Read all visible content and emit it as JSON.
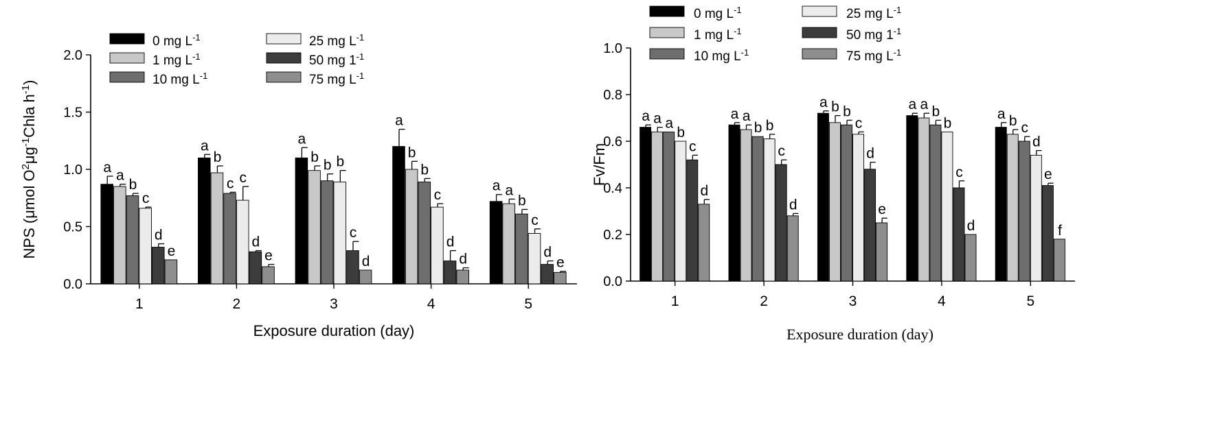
{
  "chart_data": [
    {
      "type": "bar",
      "categories": [
        "1",
        "2",
        "3",
        "4",
        "5"
      ],
      "xlabel": "Exposure duration (day)",
      "ylabel": {
        "before": "NPS (μmol O",
        "sup1": "2",
        "mid": "μg",
        "sup2": "-1",
        "after": "Chla h",
        "sup3": "-1",
        "end": ")"
      },
      "ylim": [
        0,
        2.0
      ],
      "yticks": [
        "0.0",
        "0.5",
        "1.0",
        "1.5",
        "2.0"
      ],
      "grid": false,
      "legend_position": "top-left",
      "series": [
        {
          "name": "0 mg L",
          "unit_sup": "-1",
          "color": "#000000",
          "values": [
            0.87,
            1.1,
            1.1,
            1.2,
            0.72
          ],
          "errors": [
            0.07,
            0.03,
            0.09,
            0.15,
            0.06
          ],
          "letters": [
            "a",
            "a",
            "a",
            "a",
            "a"
          ]
        },
        {
          "name": "1 mg L",
          "unit_sup": "-1",
          "color": "#c8c8c8",
          "values": [
            0.85,
            0.97,
            0.99,
            1.0,
            0.7
          ],
          "errors": [
            0.02,
            0.06,
            0.04,
            0.07,
            0.04
          ],
          "letters": [
            "a",
            "b",
            "b",
            "b",
            "a"
          ]
        },
        {
          "name": "10 mg L",
          "unit_sup": "-1",
          "color": "#6e6e6e",
          "values": [
            0.77,
            0.79,
            0.9,
            0.89,
            0.61
          ],
          "errors": [
            0.02,
            0.01,
            0.06,
            0.03,
            0.04
          ],
          "letters": [
            "b",
            "c",
            "b",
            "b",
            "b"
          ]
        },
        {
          "name": "25 mg L",
          "unit_sup": "-1",
          "color": "#ececec",
          "values": [
            0.66,
            0.73,
            0.89,
            0.67,
            0.44
          ],
          "errors": [
            0.01,
            0.12,
            0.1,
            0.03,
            0.04
          ],
          "letters": [
            "c",
            "c",
            "b",
            "c",
            "c"
          ]
        },
        {
          "name": "50 mg 1",
          "unit_sup": "-1",
          "color": "#3c3c3c",
          "values": [
            0.32,
            0.28,
            0.29,
            0.2,
            0.17
          ],
          "errors": [
            0.03,
            0.01,
            0.08,
            0.09,
            0.03
          ],
          "letters": [
            "d",
            "d",
            "c",
            "d",
            "d"
          ]
        },
        {
          "name": "75 mg L",
          "unit_sup": "-1",
          "color": "#8e8e8e",
          "values": [
            0.21,
            0.15,
            0.12,
            0.12,
            0.1
          ],
          "errors": [
            0.0,
            0.02,
            0.0,
            0.02,
            0.01
          ],
          "letters": [
            "e",
            "e",
            "d",
            "d",
            "e"
          ]
        }
      ]
    },
    {
      "type": "bar",
      "categories": [
        "1",
        "2",
        "3",
        "4",
        "5"
      ],
      "xlabel": "Exposure duration (day)",
      "ylabel": {
        "before": "Fv/Fm"
      },
      "ylim": [
        0,
        1.0
      ],
      "yticks": [
        "0.0",
        "0.2",
        "0.4",
        "0.6",
        "0.8",
        "1.0"
      ],
      "grid": false,
      "legend_position": "top-left",
      "series": [
        {
          "name": "0 mg L",
          "unit_sup": "-1",
          "color": "#000000",
          "values": [
            0.66,
            0.67,
            0.72,
            0.71,
            0.66
          ],
          "errors": [
            0.01,
            0.01,
            0.01,
            0.01,
            0.02
          ],
          "letters": [
            "a",
            "a",
            "a",
            "a",
            "a"
          ]
        },
        {
          "name": "1 mg L",
          "unit_sup": "-1",
          "color": "#c8c8c8",
          "values": [
            0.64,
            0.65,
            0.68,
            0.7,
            0.63
          ],
          "errors": [
            0.02,
            0.02,
            0.03,
            0.02,
            0.02
          ],
          "letters": [
            "a",
            "a",
            "b",
            "a",
            "b"
          ]
        },
        {
          "name": "10 mg L",
          "unit_sup": "-1",
          "color": "#6e6e6e",
          "values": [
            0.64,
            0.62,
            0.67,
            0.67,
            0.6
          ],
          "errors": [
            0.0,
            0.0,
            0.02,
            0.02,
            0.02
          ],
          "letters": [
            "a",
            "b",
            "b",
            "b",
            "c"
          ]
        },
        {
          "name": "25 mg L",
          "unit_sup": "-1",
          "color": "#ececec",
          "values": [
            0.6,
            0.61,
            0.63,
            0.64,
            0.54
          ],
          "errors": [
            0.0,
            0.02,
            0.01,
            0.0,
            0.02
          ],
          "letters": [
            "b",
            "b",
            "c",
            "b",
            "d"
          ]
        },
        {
          "name": "50 mg 1",
          "unit_sup": "-1",
          "color": "#3c3c3c",
          "values": [
            0.52,
            0.5,
            0.48,
            0.4,
            0.41
          ],
          "errors": [
            0.02,
            0.02,
            0.03,
            0.03,
            0.01
          ],
          "letters": [
            "c",
            "c",
            "d",
            "c",
            "e"
          ]
        },
        {
          "name": "75 mg L",
          "unit_sup": "-1",
          "color": "#8e8e8e",
          "values": [
            0.33,
            0.28,
            0.25,
            0.2,
            0.18
          ],
          "errors": [
            0.02,
            0.01,
            0.02,
            0.0,
            0.0
          ],
          "letters": [
            "d",
            "d",
            "e",
            "d",
            "f"
          ]
        }
      ]
    }
  ]
}
